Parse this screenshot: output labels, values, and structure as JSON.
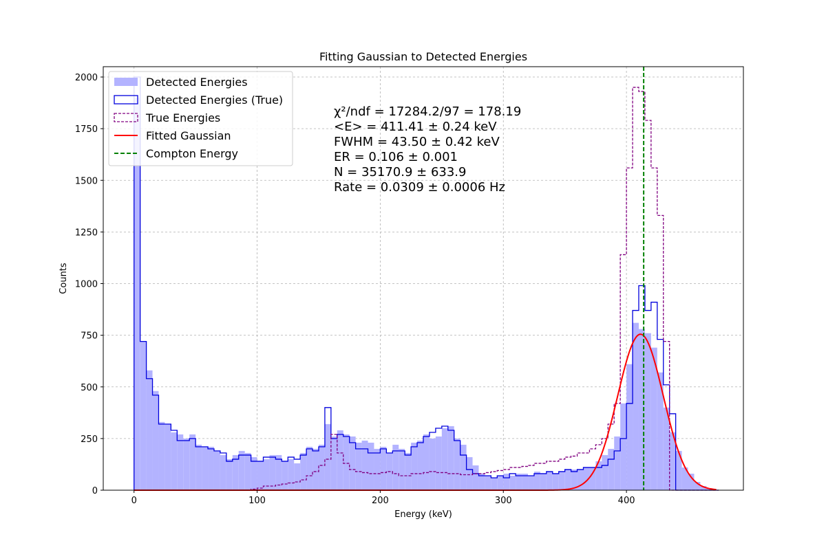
{
  "chart_data": {
    "type": "histogram",
    "title": "Fitting Gaussian to Detected Energies",
    "xlabel": "Energy (keV)",
    "ylabel": "Counts",
    "xlim": [
      -25,
      495
    ],
    "ylim": [
      0,
      2050
    ],
    "xticks": [
      0,
      100,
      200,
      300,
      400
    ],
    "yticks": [
      0,
      250,
      500,
      750,
      1000,
      1250,
      1500,
      1750,
      2000
    ],
    "grid": true,
    "legend_position": "top-left",
    "bin_edges": [
      0,
      5,
      10,
      15,
      20,
      25,
      30,
      35,
      40,
      45,
      50,
      55,
      60,
      65,
      70,
      75,
      80,
      85,
      90,
      95,
      100,
      105,
      110,
      115,
      120,
      125,
      130,
      135,
      140,
      145,
      150,
      155,
      160,
      165,
      170,
      175,
      180,
      185,
      190,
      195,
      200,
      205,
      210,
      215,
      220,
      225,
      230,
      235,
      240,
      245,
      250,
      255,
      260,
      265,
      270,
      275,
      280,
      285,
      290,
      295,
      300,
      305,
      310,
      315,
      320,
      325,
      330,
      335,
      340,
      345,
      350,
      355,
      360,
      365,
      370,
      375,
      380,
      385,
      390,
      395,
      400,
      405,
      410,
      415,
      420,
      425,
      430,
      435,
      440,
      445,
      450,
      455,
      460,
      465,
      470,
      475
    ],
    "series": [
      {
        "name": "Detected Energies",
        "style": "filled",
        "color": "#b3b3ff",
        "values": [
          1900,
          720,
          580,
          480,
          330,
          320,
          280,
          270,
          250,
          270,
          220,
          210,
          210,
          190,
          170,
          150,
          170,
          190,
          180,
          160,
          140,
          150,
          170,
          170,
          140,
          150,
          130,
          180,
          210,
          200,
          220,
          320,
          260,
          290,
          270,
          260,
          230,
          240,
          230,
          200,
          210,
          180,
          220,
          200,
          180,
          230,
          240,
          270,
          250,
          260,
          300,
          310,
          250,
          220,
          160,
          120,
          80,
          70,
          60,
          70,
          80,
          70,
          80,
          80,
          70,
          90,
          80,
          90,
          80,
          90,
          100,
          100,
          100,
          110,
          110,
          140,
          170,
          200,
          260,
          420,
          610,
          810,
          780,
          760,
          690,
          570,
          400,
          280,
          190,
          110,
          80,
          40,
          20,
          10,
          0
        ]
      },
      {
        "name": "Detected Energies (True)",
        "style": "step",
        "color": "#0000dd",
        "values": [
          2000,
          720,
          540,
          460,
          320,
          320,
          290,
          240,
          240,
          250,
          210,
          210,
          200,
          190,
          180,
          140,
          150,
          170,
          170,
          140,
          140,
          160,
          160,
          150,
          140,
          160,
          150,
          170,
          200,
          190,
          210,
          400,
          250,
          270,
          260,
          230,
          200,
          200,
          180,
          180,
          200,
          180,
          190,
          190,
          170,
          210,
          230,
          260,
          280,
          300,
          310,
          290,
          240,
          170,
          100,
          80,
          70,
          70,
          60,
          70,
          60,
          80,
          70,
          70,
          70,
          80,
          80,
          90,
          80,
          90,
          100,
          90,
          100,
          110,
          110,
          110,
          120,
          150,
          190,
          250,
          420,
          870,
          990,
          870,
          910,
          730,
          510,
          370,
          0,
          0,
          0,
          0,
          0,
          0,
          0
        ]
      },
      {
        "name": "True Energies",
        "style": "step-dashed",
        "color": "#800080",
        "values": [
          0,
          0,
          0,
          0,
          0,
          0,
          0,
          0,
          0,
          0,
          0,
          0,
          0,
          0,
          0,
          0,
          0,
          0,
          0,
          5,
          10,
          20,
          20,
          25,
          30,
          35,
          40,
          50,
          70,
          90,
          120,
          150,
          270,
          180,
          130,
          100,
          90,
          85,
          80,
          80,
          85,
          90,
          80,
          70,
          70,
          80,
          80,
          85,
          90,
          85,
          85,
          80,
          80,
          75,
          75,
          80,
          80,
          85,
          90,
          95,
          100,
          110,
          110,
          115,
          120,
          130,
          130,
          140,
          140,
          150,
          160,
          165,
          180,
          180,
          200,
          220,
          250,
          320,
          420,
          1140,
          1560,
          1950,
          1930,
          1790,
          1560,
          1330,
          720,
          0,
          0,
          0,
          0,
          0,
          0,
          0,
          0
        ]
      },
      {
        "name": "Fitted Gaussian",
        "style": "curve",
        "color": "#ff0000",
        "mean": 411.41,
        "fwhm": 43.5,
        "amplitude": 755,
        "x_range": [
          0,
          473
        ]
      },
      {
        "name": "Compton Energy",
        "style": "vline-dashed",
        "color": "#008000",
        "x": 414
      }
    ],
    "annotations": [
      "χ²/ndf = 17284.2/97 = 178.19",
      "<E> = 411.41 ± 0.24 keV",
      "FWHM = 43.50 ± 0.42 keV",
      "ER = 0.106 ± 0.001",
      "N = 35170.9 ± 633.9",
      "Rate = 0.0309 ± 0.0006 Hz"
    ]
  }
}
